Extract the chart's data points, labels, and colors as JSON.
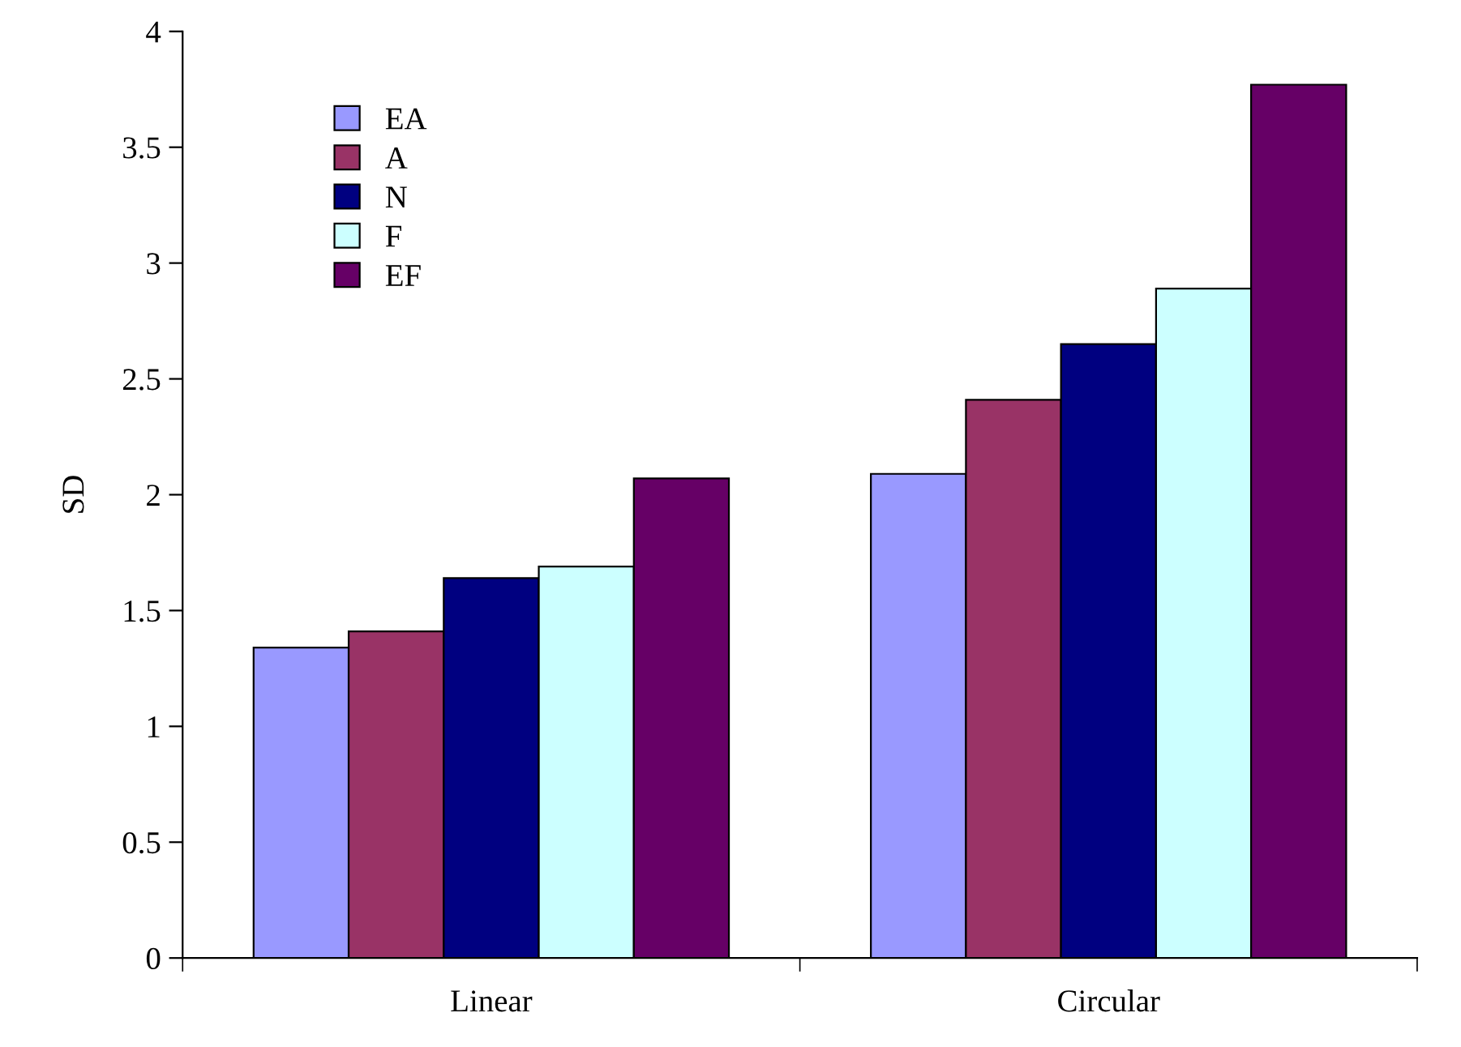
{
  "chart_data": {
    "type": "bar",
    "ylabel": "SD",
    "categories": [
      "Linear",
      "Circular"
    ],
    "series": [
      {
        "name": "EA",
        "color": "#9999ff",
        "values": [
          1.34,
          2.09
        ]
      },
      {
        "name": "A",
        "color": "#993366",
        "values": [
          1.41,
          2.41
        ]
      },
      {
        "name": "N",
        "color": "#000080",
        "values": [
          1.64,
          2.65
        ]
      },
      {
        "name": "F",
        "color": "#ccffff",
        "values": [
          1.69,
          2.89
        ]
      },
      {
        "name": "EF",
        "color": "#660066",
        "values": [
          2.07,
          3.77
        ]
      }
    ],
    "ylim": [
      0,
      4
    ],
    "yticks": [
      0,
      0.5,
      1,
      1.5,
      2,
      2.5,
      3,
      3.5,
      4
    ],
    "grid": false,
    "legend": "top left"
  }
}
